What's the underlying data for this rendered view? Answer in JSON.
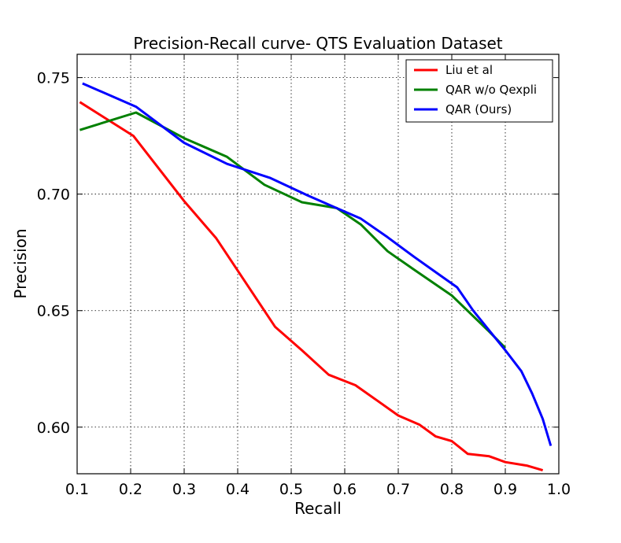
{
  "chart_data": {
    "type": "line",
    "title": "Precision-Recall curve- QTS Evaluation Dataset",
    "xlabel": "Recall",
    "ylabel": "Precision",
    "xlim": [
      0.1,
      1.0
    ],
    "ylim": [
      0.58,
      0.76
    ],
    "xticks": [
      "0.1",
      "0.2",
      "0.3",
      "0.4",
      "0.5",
      "0.6",
      "0.7",
      "0.8",
      "0.9",
      "1.0"
    ],
    "xtick_values": [
      0.1,
      0.2,
      0.3,
      0.4,
      0.5,
      0.6,
      0.7,
      0.8,
      0.9,
      1.0
    ],
    "yticks": [
      "0.60",
      "0.65",
      "0.70",
      "0.75"
    ],
    "ytick_values": [
      0.6,
      0.65,
      0.7,
      0.75
    ],
    "grid": true,
    "legend_position": "top-right",
    "series": [
      {
        "name": "Liu et al",
        "color": "#ff0000",
        "x": [
          0.105,
          0.205,
          0.3,
          0.36,
          0.47,
          0.52,
          0.57,
          0.62,
          0.66,
          0.7,
          0.74,
          0.77,
          0.8,
          0.83,
          0.87,
          0.9,
          0.94,
          0.97
        ],
        "y": [
          0.7395,
          0.725,
          0.697,
          0.681,
          0.643,
          0.633,
          0.6225,
          0.618,
          0.6115,
          0.605,
          0.601,
          0.596,
          0.594,
          0.5885,
          0.5875,
          0.585,
          0.5835,
          0.5815
        ]
      },
      {
        "name": "QAR w/o Qexpli",
        "color": "#008000",
        "x": [
          0.105,
          0.21,
          0.3,
          0.38,
          0.45,
          0.52,
          0.585,
          0.63,
          0.68,
          0.73,
          0.8,
          0.87,
          0.9
        ],
        "y": [
          0.7275,
          0.735,
          0.724,
          0.716,
          0.704,
          0.6965,
          0.694,
          0.687,
          0.6755,
          0.6675,
          0.6565,
          0.641,
          0.634
        ]
      },
      {
        "name": "QAR (Ours)",
        "color": "#0000ff",
        "x": [
          0.11,
          0.21,
          0.3,
          0.38,
          0.46,
          0.53,
          0.58,
          0.63,
          0.68,
          0.73,
          0.77,
          0.81,
          0.84,
          0.87,
          0.9,
          0.93,
          0.95,
          0.97,
          0.985
        ],
        "y": [
          0.7475,
          0.7375,
          0.722,
          0.713,
          0.707,
          0.6995,
          0.6945,
          0.6895,
          0.6815,
          0.673,
          0.6665,
          0.66,
          0.65,
          0.6415,
          0.633,
          0.624,
          0.6145,
          0.6035,
          0.592
        ]
      }
    ]
  }
}
